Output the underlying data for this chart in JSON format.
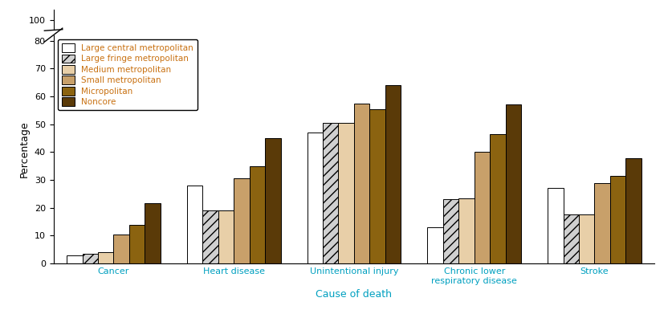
{
  "categories": [
    "Cancer",
    "Heart disease",
    "Unintentional injury",
    "Chronic lower\nrespiratory disease",
    "Stroke"
  ],
  "series_labels": [
    "Large central metropolitan",
    "Large fringe metropolitan",
    "Medium metropolitan",
    "Small metropolitan",
    "Micropolitan",
    "Noncore"
  ],
  "values": {
    "Large central metropolitan": [
      3.0,
      28.0,
      47.0,
      13.0,
      27.0
    ],
    "Large fringe metropolitan": [
      3.5,
      19.0,
      50.5,
      23.0,
      17.5
    ],
    "Medium metropolitan": [
      4.0,
      19.0,
      50.5,
      23.5,
      17.5
    ],
    "Small metropolitan": [
      10.5,
      30.5,
      57.5,
      40.0,
      29.0
    ],
    "Micropolitan": [
      14.0,
      35.0,
      55.5,
      46.5,
      31.5
    ],
    "Noncore": [
      21.7,
      44.9,
      64.1,
      57.1,
      37.8
    ]
  },
  "bar_colors": [
    "#ffffff",
    "#d0d0d0",
    "#e8cfa8",
    "#c8a06a",
    "#8b6310",
    "#5a3a08"
  ],
  "bar_edgecolors": [
    "#000000",
    "#000000",
    "#000000",
    "#000000",
    "#000000",
    "#000000"
  ],
  "bar_hatches": [
    "",
    "///",
    "",
    "",
    "",
    ""
  ],
  "ylim": [
    0,
    80
  ],
  "yticks": [
    0,
    10,
    20,
    30,
    40,
    50,
    60,
    70,
    80
  ],
  "ytick_top": 100,
  "ylabel": "Percentage",
  "xlabel": "Cause of death",
  "background_color": "#ffffff",
  "bar_width": 0.13,
  "legend_text_color": "#c87010",
  "axis_label_color": "#00a0c0",
  "ylabel_color": "#000000",
  "tick_label_color": "#000000"
}
